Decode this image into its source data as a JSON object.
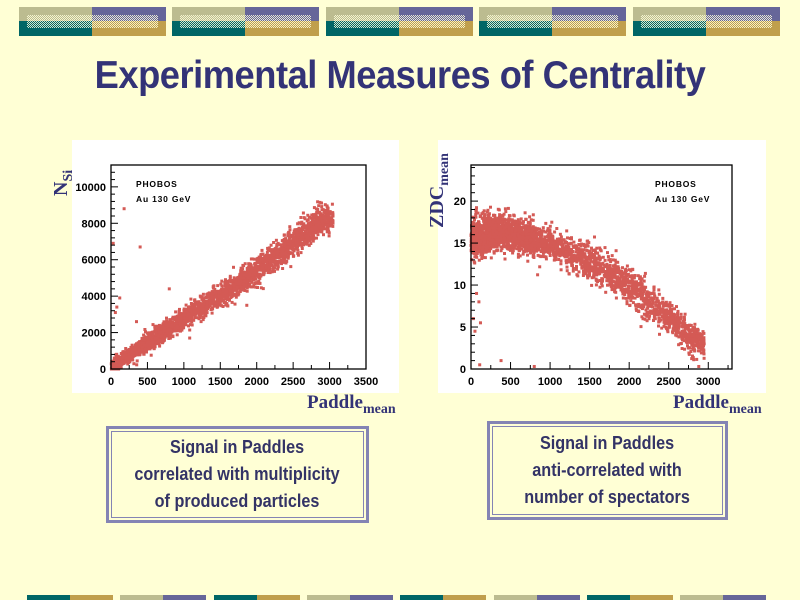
{
  "title": "Experimental Measures of Centrality",
  "colors": {
    "background": "#FFFFD5",
    "title": "#333377",
    "khaki": "#BCBC90",
    "purple": "#666699",
    "teal": "#006666",
    "gold": "#C09F4C",
    "points": "#D45A55",
    "box_border": "#8484B4"
  },
  "chart_data": [
    {
      "type": "scatter",
      "title": "",
      "annotation": [
        "PHOBOS",
        "Au 130 GeV"
      ],
      "xlabel": "Paddle",
      "xlabel_sub": "mean",
      "ylabel": "N",
      "ylabel_sub": "Si",
      "xlim": [
        0,
        3500
      ],
      "ylim": [
        0,
        11200
      ],
      "xticks": [
        "0",
        "500",
        "1000",
        "1500",
        "2000",
        "2500",
        "3000",
        "3500"
      ],
      "yticks": [
        "0",
        "2000",
        "4000",
        "6000",
        "8000",
        "10000"
      ],
      "xtick_values": [
        0,
        500,
        1000,
        1500,
        2000,
        2500,
        3000,
        3500
      ],
      "ytick_values": [
        0,
        2000,
        4000,
        6000,
        8000,
        10000
      ],
      "trend": {
        "x": [
          0,
          500,
          1000,
          1500,
          2000,
          2500,
          2900
        ],
        "y": [
          100,
          1400,
          2800,
          4000,
          5400,
          6900,
          8200
        ],
        "spread": [
          300,
          450,
          500,
          550,
          650,
          700,
          700
        ]
      },
      "outliers": [
        [
          180,
          8800
        ],
        [
          30,
          6900
        ],
        [
          400,
          6700
        ],
        [
          120,
          3900
        ],
        [
          800,
          4400
        ],
        [
          80,
          3400
        ],
        [
          60,
          3100
        ],
        [
          350,
          2600
        ],
        [
          1080,
          1700
        ]
      ]
    },
    {
      "type": "scatter",
      "title": "",
      "annotation": [
        "PHOBOS",
        "Au 130 GeV"
      ],
      "xlabel": "Paddle",
      "xlabel_sub": "mean",
      "ylabel": "ZDC",
      "ylabel_sub": "mean",
      "xlim": [
        0,
        3300
      ],
      "ylim": [
        0,
        24.3
      ],
      "xticks": [
        "0",
        "500",
        "1000",
        "1500",
        "2000",
        "2500",
        "3000"
      ],
      "yticks": [
        "0",
        "5",
        "10",
        "15",
        "20"
      ],
      "xtick_values": [
        0,
        500,
        1000,
        1500,
        2000,
        2500,
        3000
      ],
      "ytick_values": [
        0,
        5,
        10,
        15,
        20
      ],
      "trend": {
        "x": [
          0,
          300,
          600,
          1000,
          1500,
          2000,
          2400,
          2800
        ],
        "y": [
          15.5,
          16.2,
          16,
          14.8,
          12.8,
          10,
          6.8,
          3.5
        ],
        "spread": [
          2.2,
          1.8,
          1.8,
          1.8,
          2,
          2.1,
          1.9,
          1.5
        ]
      },
      "outliers": [
        [
          30,
          6
        ],
        [
          50,
          4.5
        ],
        [
          100,
          8
        ],
        [
          110,
          0.5
        ],
        [
          380,
          1
        ],
        [
          800,
          0.3
        ],
        [
          2880,
          0.3
        ],
        [
          120,
          5.5
        ],
        [
          70,
          9
        ]
      ]
    }
  ],
  "boxes": [
    {
      "lines": [
        "Signal in Paddles",
        "correlated with multiplicity",
        "of produced particles"
      ]
    },
    {
      "lines": [
        "Signal in Paddles",
        "anti-correlated with",
        "number of spectators"
      ]
    }
  ]
}
